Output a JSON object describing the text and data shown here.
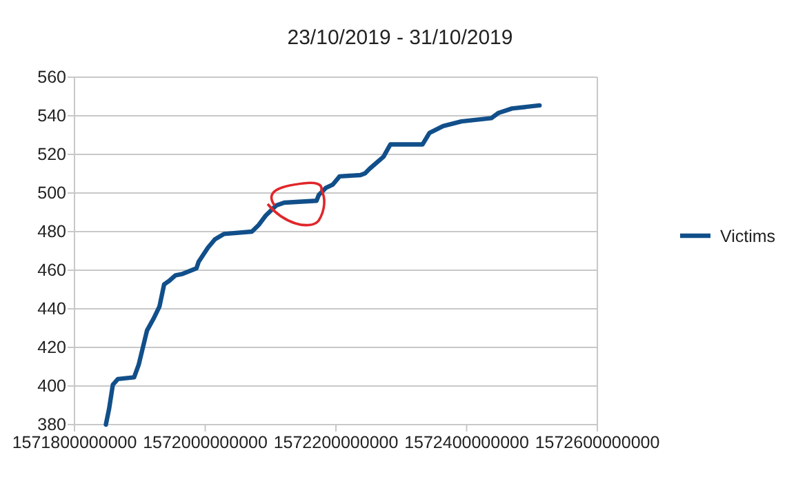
{
  "chart_data": {
    "type": "line",
    "title": "23/10/2019 - 31/10/2019",
    "xlim": [
      1571800000000,
      1572600000000
    ],
    "xticks": [
      1571800000000,
      1572000000000,
      1572200000000,
      1572400000000,
      1572600000000
    ],
    "ylim": [
      380,
      560
    ],
    "yticks": [
      380,
      400,
      420,
      440,
      460,
      480,
      500,
      520,
      540,
      560
    ],
    "grid": "y",
    "legend": "right",
    "marker": "none",
    "line_style": "solid",
    "series": [
      {
        "name": "Victims",
        "color": "#114f8a",
        "x": [
          1571848000000,
          1571853000000,
          1571858700000,
          1571866400000,
          1571891200000,
          1571898200000,
          1571911000000,
          1571920800000,
          1571930000000,
          1571937100000,
          1571944200000,
          1571954800000,
          1571965400000,
          1571986600000,
          1571990100000,
          1572004200000,
          1572014800000,
          1572029000000,
          1572071400000,
          1572082000000,
          1572092600000,
          1572108800000,
          1572120800000,
          1572170300000,
          1572173800000,
          1572184400000,
          1572195000000,
          1572205600000,
          1572237400000,
          1572244500000,
          1572251600000,
          1572272800000,
          1572283300000,
          1572332600000,
          1572343100000,
          1572364100000,
          1572392100000,
          1572437800000,
          1572448300000,
          1572469400000,
          1572511500000
        ],
        "values": [
          380,
          388.3,
          400.7,
          403.6,
          404.5,
          411,
          428.8,
          434.8,
          441.2,
          452.6,
          454.3,
          457.4,
          458.1,
          461,
          464.5,
          471.7,
          476,
          478.8,
          480,
          483.5,
          488.3,
          493.6,
          495,
          496,
          499,
          502.6,
          504.3,
          508.6,
          509.3,
          510.2,
          512.6,
          518.8,
          525.2,
          525.2,
          531.1,
          534.7,
          537.1,
          538.8,
          541.4,
          543.8,
          545.4
        ]
      }
    ]
  }
}
